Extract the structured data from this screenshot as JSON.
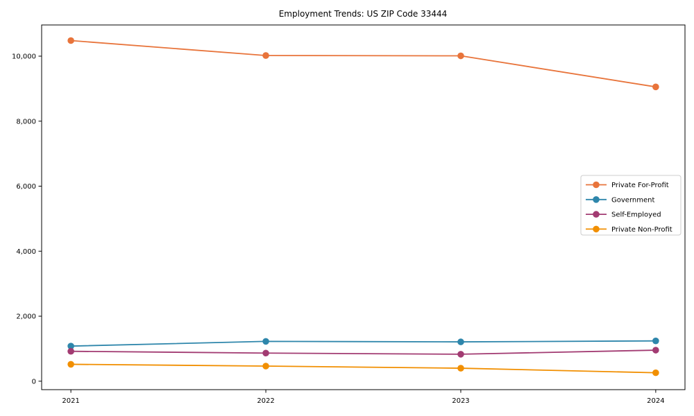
{
  "page": {
    "background_color": "#ffffff",
    "text_color": "#000000",
    "axis_color": "#000000",
    "legend_border_color": "#cccccc"
  },
  "chart_data": {
    "type": "line",
    "title": "Employment Trends: US ZIP Code 33444",
    "xlabel": "",
    "ylabel": "",
    "x": [
      2021,
      2022,
      2023,
      2024
    ],
    "x_tick_labels": [
      "2021",
      "2022",
      "2023",
      "2024"
    ],
    "xlim": [
      2020.85,
      2024.15
    ],
    "ylim": [
      -260,
      10960
    ],
    "yticks": [
      0,
      2000,
      4000,
      6000,
      8000,
      10000
    ],
    "y_tick_labels": [
      "0",
      "2,000",
      "4,000",
      "6,000",
      "8,000",
      "10,000"
    ],
    "grid": false,
    "legend_position": "center right",
    "marker": "circle",
    "series": [
      {
        "name": "Private For-Profit",
        "color": "#E8743B",
        "values": [
          10480,
          10020,
          10010,
          9055
        ]
      },
      {
        "name": "Government",
        "color": "#2E86AB",
        "values": [
          1080,
          1225,
          1210,
          1240
        ]
      },
      {
        "name": "Self-Employed",
        "color": "#A23B72",
        "values": [
          920,
          865,
          830,
          955
        ]
      },
      {
        "name": "Private Non-Profit",
        "color": "#F18F01",
        "values": [
          520,
          465,
          400,
          260
        ]
      }
    ]
  }
}
